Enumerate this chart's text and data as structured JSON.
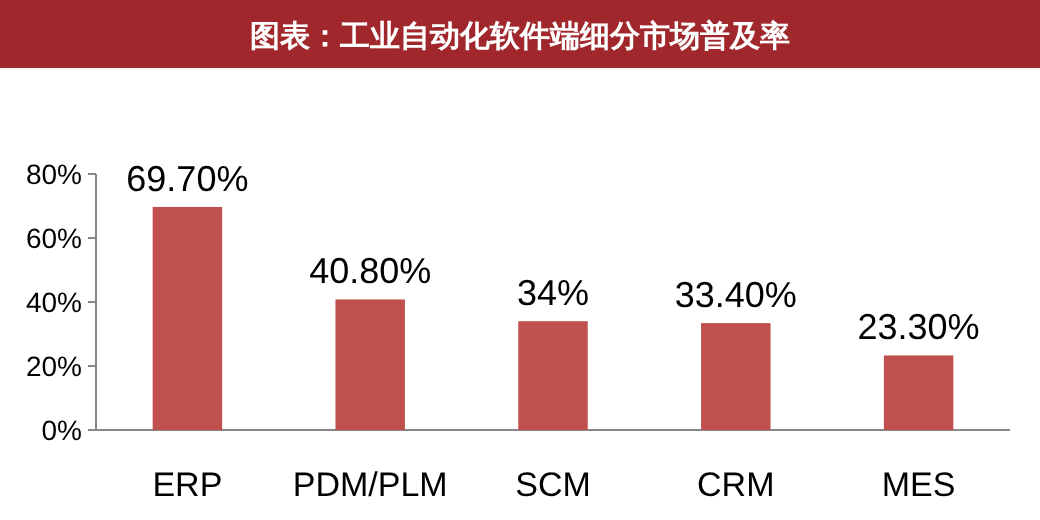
{
  "chart_data": {
    "type": "bar",
    "title": "图表：工业自动化软件端细分市场普及率",
    "categories": [
      "ERP",
      "PDM/PLM",
      "SCM",
      "CRM",
      "MES"
    ],
    "values": [
      69.7,
      40.8,
      34,
      33.4,
      23.3
    ],
    "value_labels": [
      "69.70%",
      "40.80%",
      "34%",
      "33.40%",
      "23.30%"
    ],
    "color": "#c0504d",
    "ylim": [
      0,
      80
    ],
    "yticks": [
      {
        "value": 0,
        "label": "0%"
      },
      {
        "value": 20,
        "label": "20%"
      },
      {
        "value": 40,
        "label": "40%"
      },
      {
        "value": 60,
        "label": "60%"
      },
      {
        "value": 80,
        "label": "80%"
      }
    ]
  }
}
